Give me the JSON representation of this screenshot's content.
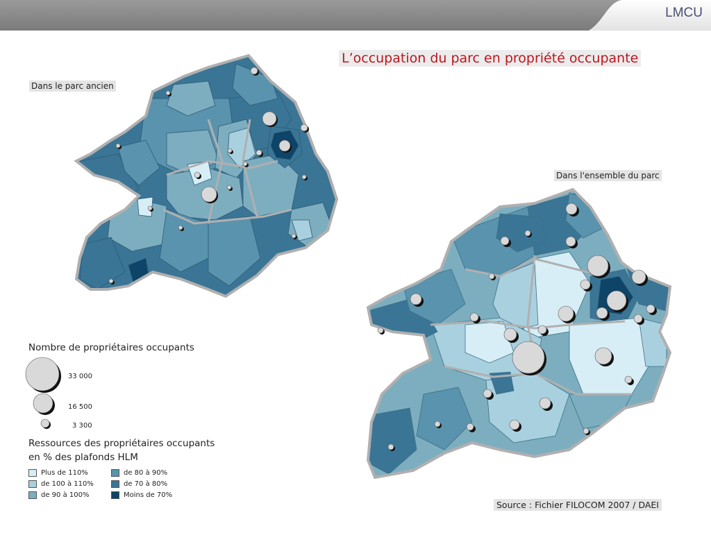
{
  "header": {
    "brand": "LMCU",
    "bar_color": "#8a8a8a"
  },
  "title": "L’occupation du parc en propriété occupante",
  "maps": {
    "old_stock_label": "Dans le parc ancien",
    "all_stock_label": "Dans l'ensemble du parc"
  },
  "legend": {
    "size_title": "Nombre de propriétaires occupants",
    "sizes": [
      {
        "label": "33 000",
        "value": 33000
      },
      {
        "label": "16 500",
        "value": 16500
      },
      {
        "label": "3 300",
        "value": 3300
      }
    ],
    "color_title_line1": "Ressources des propriétaires occupants",
    "color_title_line2": "en % des plafonds HLM",
    "classes": [
      {
        "label": "Plus de 110%",
        "color": "#d7eef7"
      },
      {
        "label": "de 100 à 110%",
        "color": "#a9d0df"
      },
      {
        "label": "de 90 à 100%",
        "color": "#7daebf"
      },
      {
        "label": "de 80 à 90%",
        "color": "#5a93ad"
      },
      {
        "label": "de 70 à 80%",
        "color": "#3a7596"
      },
      {
        "label": "Moins de 70%",
        "color": "#0e4467"
      }
    ]
  },
  "source": "Source : Fichier FILOCOM 2007 / DAEI",
  "bubble_color": "#d9d9d9",
  "border_color": "#b0b0b0"
}
